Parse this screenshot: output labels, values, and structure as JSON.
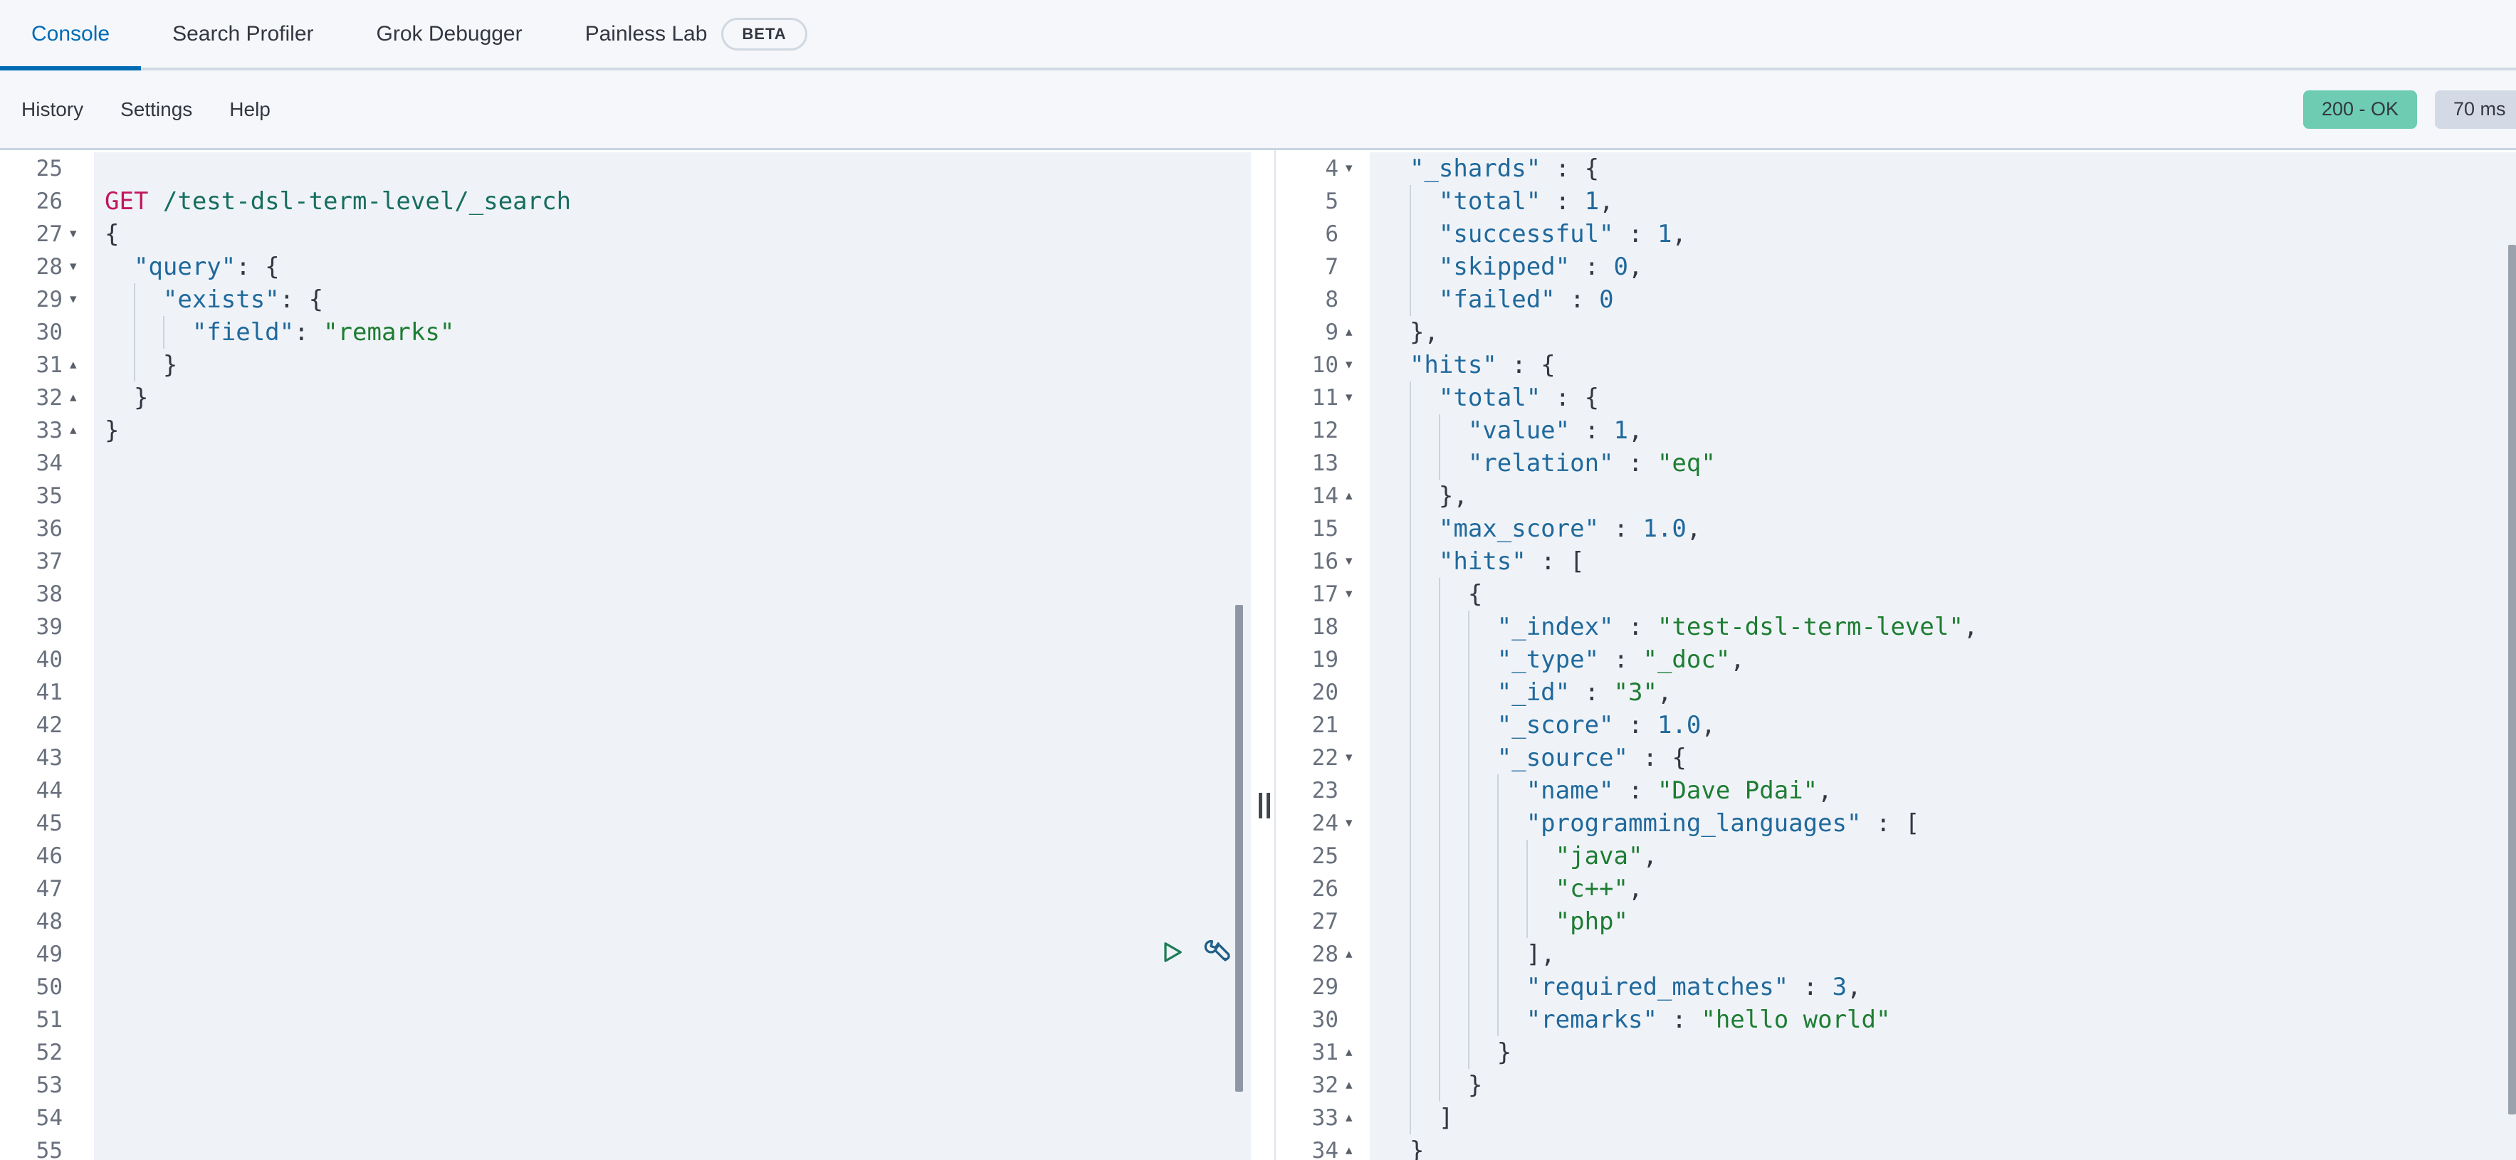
{
  "tabs": {
    "items": [
      {
        "label": "Console",
        "active": true
      },
      {
        "label": "Search Profiler",
        "active": false
      },
      {
        "label": "Grok Debugger",
        "active": false
      },
      {
        "label": "Painless Lab",
        "active": false,
        "beta": "BETA"
      }
    ]
  },
  "menubar": {
    "items": [
      {
        "label": "History"
      },
      {
        "label": "Settings"
      },
      {
        "label": "Help"
      }
    ],
    "status_badge": "200 - OK",
    "time_badge": "70 ms"
  },
  "theme": {
    "page_bg": "#f5f7fa",
    "text_color": "#343741",
    "accent_blue": "#006bb4",
    "border_color": "#d3dae6",
    "pill_border": "#d0d8e2",
    "badge_success_bg": "#6dccb1",
    "badge_time_bg": "#d3dae6",
    "badge_text": "#343741",
    "editor_top_border": "#c9d4e0",
    "panel_divider": "#dee5ed",
    "editor_bg": "#eff3f8",
    "gutter_bg": "#ffffff",
    "line_number_color": "#69707d",
    "fold_color": "#596069",
    "guide_color": "#ccd3db",
    "method_color": "#c2165e",
    "url_color": "#176e5f",
    "key_color": "#20699c",
    "string_color": "#1e7d32",
    "number_color": "#20699c",
    "punct_color": "#343741",
    "splitter_color": "#3f4752",
    "scrollbar_left": "#8f97a3",
    "scrollbar_right": "#9aa2ae",
    "play_icon": "#1d7d56",
    "wrench_icon": "#215f87"
  },
  "request_editor": {
    "lines": [
      {
        "n": 25
      },
      {
        "n": 26,
        "tokens": [
          [
            "m",
            "GET "
          ],
          [
            "u",
            "/test-dsl-term-level/_search"
          ]
        ]
      },
      {
        "n": 27,
        "fold": "d",
        "ind": 0,
        "tokens": [
          [
            "p",
            "{"
          ]
        ]
      },
      {
        "n": 28,
        "fold": "d",
        "ind": 1,
        "tokens": [
          [
            "k",
            "\"query\""
          ],
          [
            "p",
            ": {"
          ]
        ]
      },
      {
        "n": 29,
        "fold": "d",
        "ind": 2,
        "tokens": [
          [
            "k",
            "\"exists\""
          ],
          [
            "p",
            ": {"
          ]
        ]
      },
      {
        "n": 30,
        "ind": 3,
        "tokens": [
          [
            "k",
            "\"field\""
          ],
          [
            "p",
            ": "
          ],
          [
            "s",
            "\"remarks\""
          ]
        ]
      },
      {
        "n": 31,
        "fold": "u",
        "ind": 2,
        "tokens": [
          [
            "p",
            "}"
          ]
        ]
      },
      {
        "n": 32,
        "fold": "u",
        "ind": 1,
        "tokens": [
          [
            "p",
            "}"
          ]
        ]
      },
      {
        "n": 33,
        "fold": "u",
        "ind": 0,
        "tokens": [
          [
            "p",
            "}"
          ]
        ]
      },
      {
        "n": 34
      },
      {
        "n": 35
      },
      {
        "n": 36
      },
      {
        "n": 37
      },
      {
        "n": 38
      },
      {
        "n": 39
      },
      {
        "n": 40
      },
      {
        "n": 41
      },
      {
        "n": 42
      },
      {
        "n": 43
      },
      {
        "n": 44
      },
      {
        "n": 45
      },
      {
        "n": 46
      },
      {
        "n": 47
      },
      {
        "n": 48
      },
      {
        "n": 49
      },
      {
        "n": 50
      },
      {
        "n": 51
      },
      {
        "n": 52
      },
      {
        "n": 53
      },
      {
        "n": 54
      },
      {
        "n": 55
      }
    ]
  },
  "response_viewer": {
    "lines": [
      {
        "n": 4,
        "fold": "d",
        "ind": 1,
        "tokens": [
          [
            "k",
            "\"_shards\""
          ],
          [
            "p",
            " : {"
          ]
        ]
      },
      {
        "n": 5,
        "ind": 2,
        "tokens": [
          [
            "k",
            "\"total\""
          ],
          [
            "p",
            " : "
          ],
          [
            "n",
            "1"
          ],
          [
            "p",
            ","
          ]
        ]
      },
      {
        "n": 6,
        "ind": 2,
        "tokens": [
          [
            "k",
            "\"successful\""
          ],
          [
            "p",
            " : "
          ],
          [
            "n",
            "1"
          ],
          [
            "p",
            ","
          ]
        ]
      },
      {
        "n": 7,
        "ind": 2,
        "tokens": [
          [
            "k",
            "\"skipped\""
          ],
          [
            "p",
            " : "
          ],
          [
            "n",
            "0"
          ],
          [
            "p",
            ","
          ]
        ]
      },
      {
        "n": 8,
        "ind": 2,
        "tokens": [
          [
            "k",
            "\"failed\""
          ],
          [
            "p",
            " : "
          ],
          [
            "n",
            "0"
          ]
        ]
      },
      {
        "n": 9,
        "fold": "u",
        "ind": 1,
        "tokens": [
          [
            "p",
            "},"
          ]
        ]
      },
      {
        "n": 10,
        "fold": "d",
        "ind": 1,
        "tokens": [
          [
            "k",
            "\"hits\""
          ],
          [
            "p",
            " : {"
          ]
        ]
      },
      {
        "n": 11,
        "fold": "d",
        "ind": 2,
        "tokens": [
          [
            "k",
            "\"total\""
          ],
          [
            "p",
            " : {"
          ]
        ]
      },
      {
        "n": 12,
        "ind": 3,
        "tokens": [
          [
            "k",
            "\"value\""
          ],
          [
            "p",
            " : "
          ],
          [
            "n",
            "1"
          ],
          [
            "p",
            ","
          ]
        ]
      },
      {
        "n": 13,
        "ind": 3,
        "tokens": [
          [
            "k",
            "\"relation\""
          ],
          [
            "p",
            " : "
          ],
          [
            "s",
            "\"eq\""
          ]
        ]
      },
      {
        "n": 14,
        "fold": "u",
        "ind": 2,
        "tokens": [
          [
            "p",
            "},"
          ]
        ]
      },
      {
        "n": 15,
        "ind": 2,
        "tokens": [
          [
            "k",
            "\"max_score\""
          ],
          [
            "p",
            " : "
          ],
          [
            "n",
            "1.0"
          ],
          [
            "p",
            ","
          ]
        ]
      },
      {
        "n": 16,
        "fold": "d",
        "ind": 2,
        "tokens": [
          [
            "k",
            "\"hits\""
          ],
          [
            "p",
            " : ["
          ]
        ]
      },
      {
        "n": 17,
        "fold": "d",
        "ind": 3,
        "tokens": [
          [
            "p",
            "{"
          ]
        ]
      },
      {
        "n": 18,
        "ind": 4,
        "tokens": [
          [
            "k",
            "\"_index\""
          ],
          [
            "p",
            " : "
          ],
          [
            "s",
            "\"test-dsl-term-level\""
          ],
          [
            "p",
            ","
          ]
        ]
      },
      {
        "n": 19,
        "ind": 4,
        "tokens": [
          [
            "k",
            "\"_type\""
          ],
          [
            "p",
            " : "
          ],
          [
            "s",
            "\"_doc\""
          ],
          [
            "p",
            ","
          ]
        ]
      },
      {
        "n": 20,
        "ind": 4,
        "tokens": [
          [
            "k",
            "\"_id\""
          ],
          [
            "p",
            " : "
          ],
          [
            "s",
            "\"3\""
          ],
          [
            "p",
            ","
          ]
        ]
      },
      {
        "n": 21,
        "ind": 4,
        "tokens": [
          [
            "k",
            "\"_score\""
          ],
          [
            "p",
            " : "
          ],
          [
            "n",
            "1.0"
          ],
          [
            "p",
            ","
          ]
        ]
      },
      {
        "n": 22,
        "fold": "d",
        "ind": 4,
        "tokens": [
          [
            "k",
            "\"_source\""
          ],
          [
            "p",
            " : {"
          ]
        ]
      },
      {
        "n": 23,
        "ind": 5,
        "tokens": [
          [
            "k",
            "\"name\""
          ],
          [
            "p",
            " : "
          ],
          [
            "s",
            "\"Dave Pdai\""
          ],
          [
            "p",
            ","
          ]
        ]
      },
      {
        "n": 24,
        "fold": "d",
        "ind": 5,
        "tokens": [
          [
            "k",
            "\"programming_languages\""
          ],
          [
            "p",
            " : ["
          ]
        ]
      },
      {
        "n": 25,
        "ind": 6,
        "tokens": [
          [
            "s",
            "\"java\""
          ],
          [
            "p",
            ","
          ]
        ]
      },
      {
        "n": 26,
        "ind": 6,
        "tokens": [
          [
            "s",
            "\"c++\""
          ],
          [
            "p",
            ","
          ]
        ]
      },
      {
        "n": 27,
        "ind": 6,
        "tokens": [
          [
            "s",
            "\"php\""
          ]
        ]
      },
      {
        "n": 28,
        "fold": "u",
        "ind": 5,
        "tokens": [
          [
            "p",
            "],"
          ]
        ]
      },
      {
        "n": 29,
        "ind": 5,
        "tokens": [
          [
            "k",
            "\"required_matches\""
          ],
          [
            "p",
            " : "
          ],
          [
            "n",
            "3"
          ],
          [
            "p",
            ","
          ]
        ]
      },
      {
        "n": 30,
        "ind": 5,
        "tokens": [
          [
            "k",
            "\"remarks\""
          ],
          [
            "p",
            " : "
          ],
          [
            "s",
            "\"hello world\""
          ]
        ]
      },
      {
        "n": 31,
        "fold": "u",
        "ind": 4,
        "tokens": [
          [
            "p",
            "}"
          ]
        ]
      },
      {
        "n": 32,
        "fold": "u",
        "ind": 3,
        "tokens": [
          [
            "p",
            "}"
          ]
        ]
      },
      {
        "n": 33,
        "fold": "u",
        "ind": 2,
        "tokens": [
          [
            "p",
            "]"
          ]
        ]
      },
      {
        "n": 34,
        "fold": "u",
        "ind": 1,
        "tokens": [
          [
            "p",
            "}"
          ]
        ]
      }
    ]
  }
}
